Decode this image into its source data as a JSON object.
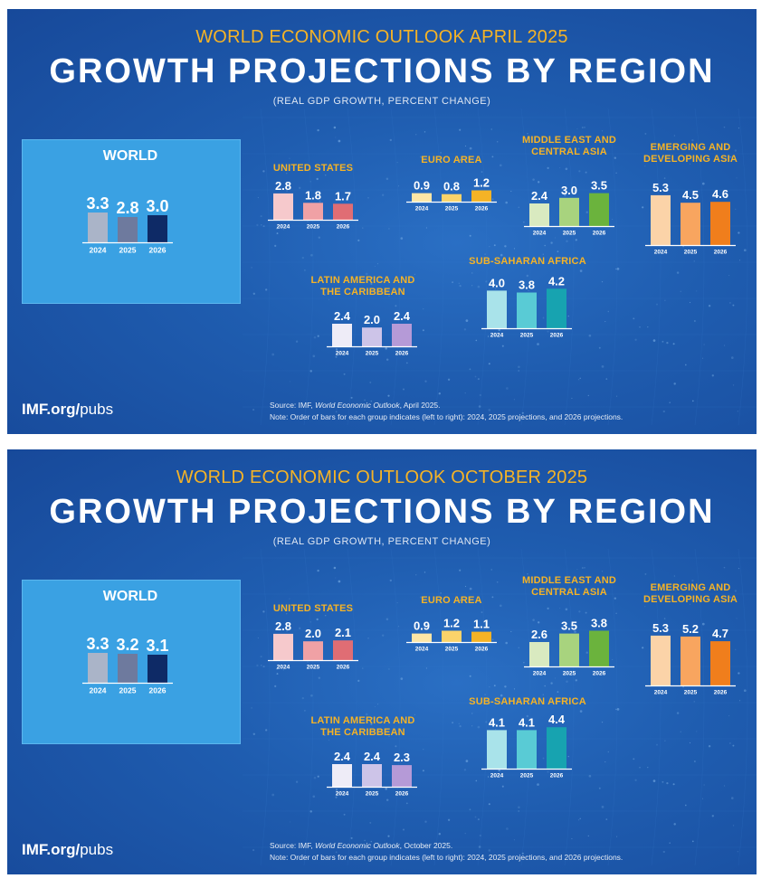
{
  "colors": {
    "accent": "#f5b326",
    "world": [
      "#aab4c8",
      "#6e7a9e",
      "#0e2a66"
    ],
    "united_states": [
      "#f6c9cc",
      "#f0a1a5",
      "#e06d74"
    ],
    "euro_area": [
      "#fde6a6",
      "#fbd36a",
      "#f5b326"
    ],
    "middle_east": [
      "#d9eac0",
      "#a8d37e",
      "#6bb33d"
    ],
    "emerging_asia": [
      "#fbd3a8",
      "#f8a55f",
      "#f07e1c"
    ],
    "latin_america": [
      "#eeecf7",
      "#cdc4e8",
      "#b59ad7"
    ],
    "sub_saharan": [
      "#a9e3ea",
      "#59cbd5",
      "#17a3b0"
    ]
  },
  "chart_data": [
    {
      "type": "bar",
      "subtitle": "WORLD ECONOMIC OUTLOOK APRIL 2025",
      "title": "GROWTH PROJECTIONS BY REGION",
      "units": "(REAL GDP GROWTH, PERCENT CHANGE)",
      "categories": [
        "2024",
        "2025",
        "2026"
      ],
      "groups": [
        {
          "key": "world",
          "name": "WORLD",
          "values": [
            3.3,
            2.8,
            3.0
          ],
          "labels": [
            "3.3",
            "2.8",
            "3.0"
          ]
        },
        {
          "key": "united_states",
          "name": "UNITED STATES",
          "values": [
            2.8,
            1.8,
            1.7
          ],
          "labels": [
            "2.8",
            "1.8",
            "1.7"
          ]
        },
        {
          "key": "euro_area",
          "name": "EURO AREA",
          "values": [
            0.9,
            0.8,
            1.2
          ],
          "labels": [
            "0.9",
            "0.8",
            "1.2"
          ]
        },
        {
          "key": "middle_east",
          "name": "MIDDLE EAST AND CENTRAL ASIA",
          "values": [
            2.4,
            3.0,
            3.5
          ],
          "labels": [
            "2.4",
            "3.0",
            "3.5"
          ]
        },
        {
          "key": "emerging_asia",
          "name": "EMERGING AND DEVELOPING ASIA",
          "values": [
            5.3,
            4.5,
            4.6
          ],
          "labels": [
            "5.3",
            "4.5",
            "4.6"
          ]
        },
        {
          "key": "latin_america",
          "name": "LATIN AMERICA AND THE CARIBBEAN",
          "values": [
            2.4,
            2.0,
            2.4
          ],
          "labels": [
            "2.4",
            "2.0",
            "2.4"
          ]
        },
        {
          "key": "sub_saharan",
          "name": "SUB-SAHARAN AFRICA",
          "values": [
            4.0,
            3.8,
            4.2
          ],
          "labels": [
            "4.0",
            "3.8",
            "4.2"
          ]
        }
      ],
      "site_bold": "IMF.org/",
      "site_rest": "pubs",
      "source_prefix": "Source:  IMF, ",
      "source_italic": "World Economic Outlook",
      "source_suffix": ", April 2025.",
      "note": "Note:  Order of bars for each group indicates (left to right): 2024, 2025 projections, and 2026 projections."
    },
    {
      "type": "bar",
      "subtitle": "WORLD ECONOMIC OUTLOOK OCTOBER 2025",
      "title": "GROWTH PROJECTIONS BY REGION",
      "units": "(REAL GDP GROWTH, PERCENT CHANGE)",
      "categories": [
        "2024",
        "2025",
        "2026"
      ],
      "groups": [
        {
          "key": "world",
          "name": "WORLD",
          "values": [
            3.3,
            3.2,
            3.1
          ],
          "labels": [
            "3.3",
            "3.2",
            "3.1"
          ]
        },
        {
          "key": "united_states",
          "name": "UNITED STATES",
          "values": [
            2.8,
            2.0,
            2.1
          ],
          "labels": [
            "2.8",
            "2.0",
            "2.1"
          ]
        },
        {
          "key": "euro_area",
          "name": "EURO AREA",
          "values": [
            0.9,
            1.2,
            1.1
          ],
          "labels": [
            "0.9",
            "1.2",
            "1.1"
          ]
        },
        {
          "key": "middle_east",
          "name": "MIDDLE EAST AND CENTRAL ASIA",
          "values": [
            2.6,
            3.5,
            3.8
          ],
          "labels": [
            "2.6",
            "3.5",
            "3.8"
          ]
        },
        {
          "key": "emerging_asia",
          "name": "EMERGING AND DEVELOPING ASIA",
          "values": [
            5.3,
            5.2,
            4.7
          ],
          "labels": [
            "5.3",
            "5.2",
            "4.7"
          ]
        },
        {
          "key": "latin_america",
          "name": "LATIN AMERICA AND THE CARIBBEAN",
          "values": [
            2.4,
            2.4,
            2.3
          ],
          "labels": [
            "2.4",
            "2.4",
            "2.3"
          ]
        },
        {
          "key": "sub_saharan",
          "name": "SUB-SAHARAN AFRICA",
          "values": [
            4.1,
            4.1,
            4.4
          ],
          "labels": [
            "4.1",
            "4.1",
            "4.4"
          ]
        }
      ],
      "site_bold": "IMF.org/",
      "site_rest": "pubs",
      "source_prefix": "Source:  IMF, ",
      "source_italic": "World Economic Outlook",
      "source_suffix": ", October 2025.",
      "note": "Note:  Order of bars for each group indicates (left to right): 2024, 2025 projections, and 2026 projections."
    }
  ]
}
